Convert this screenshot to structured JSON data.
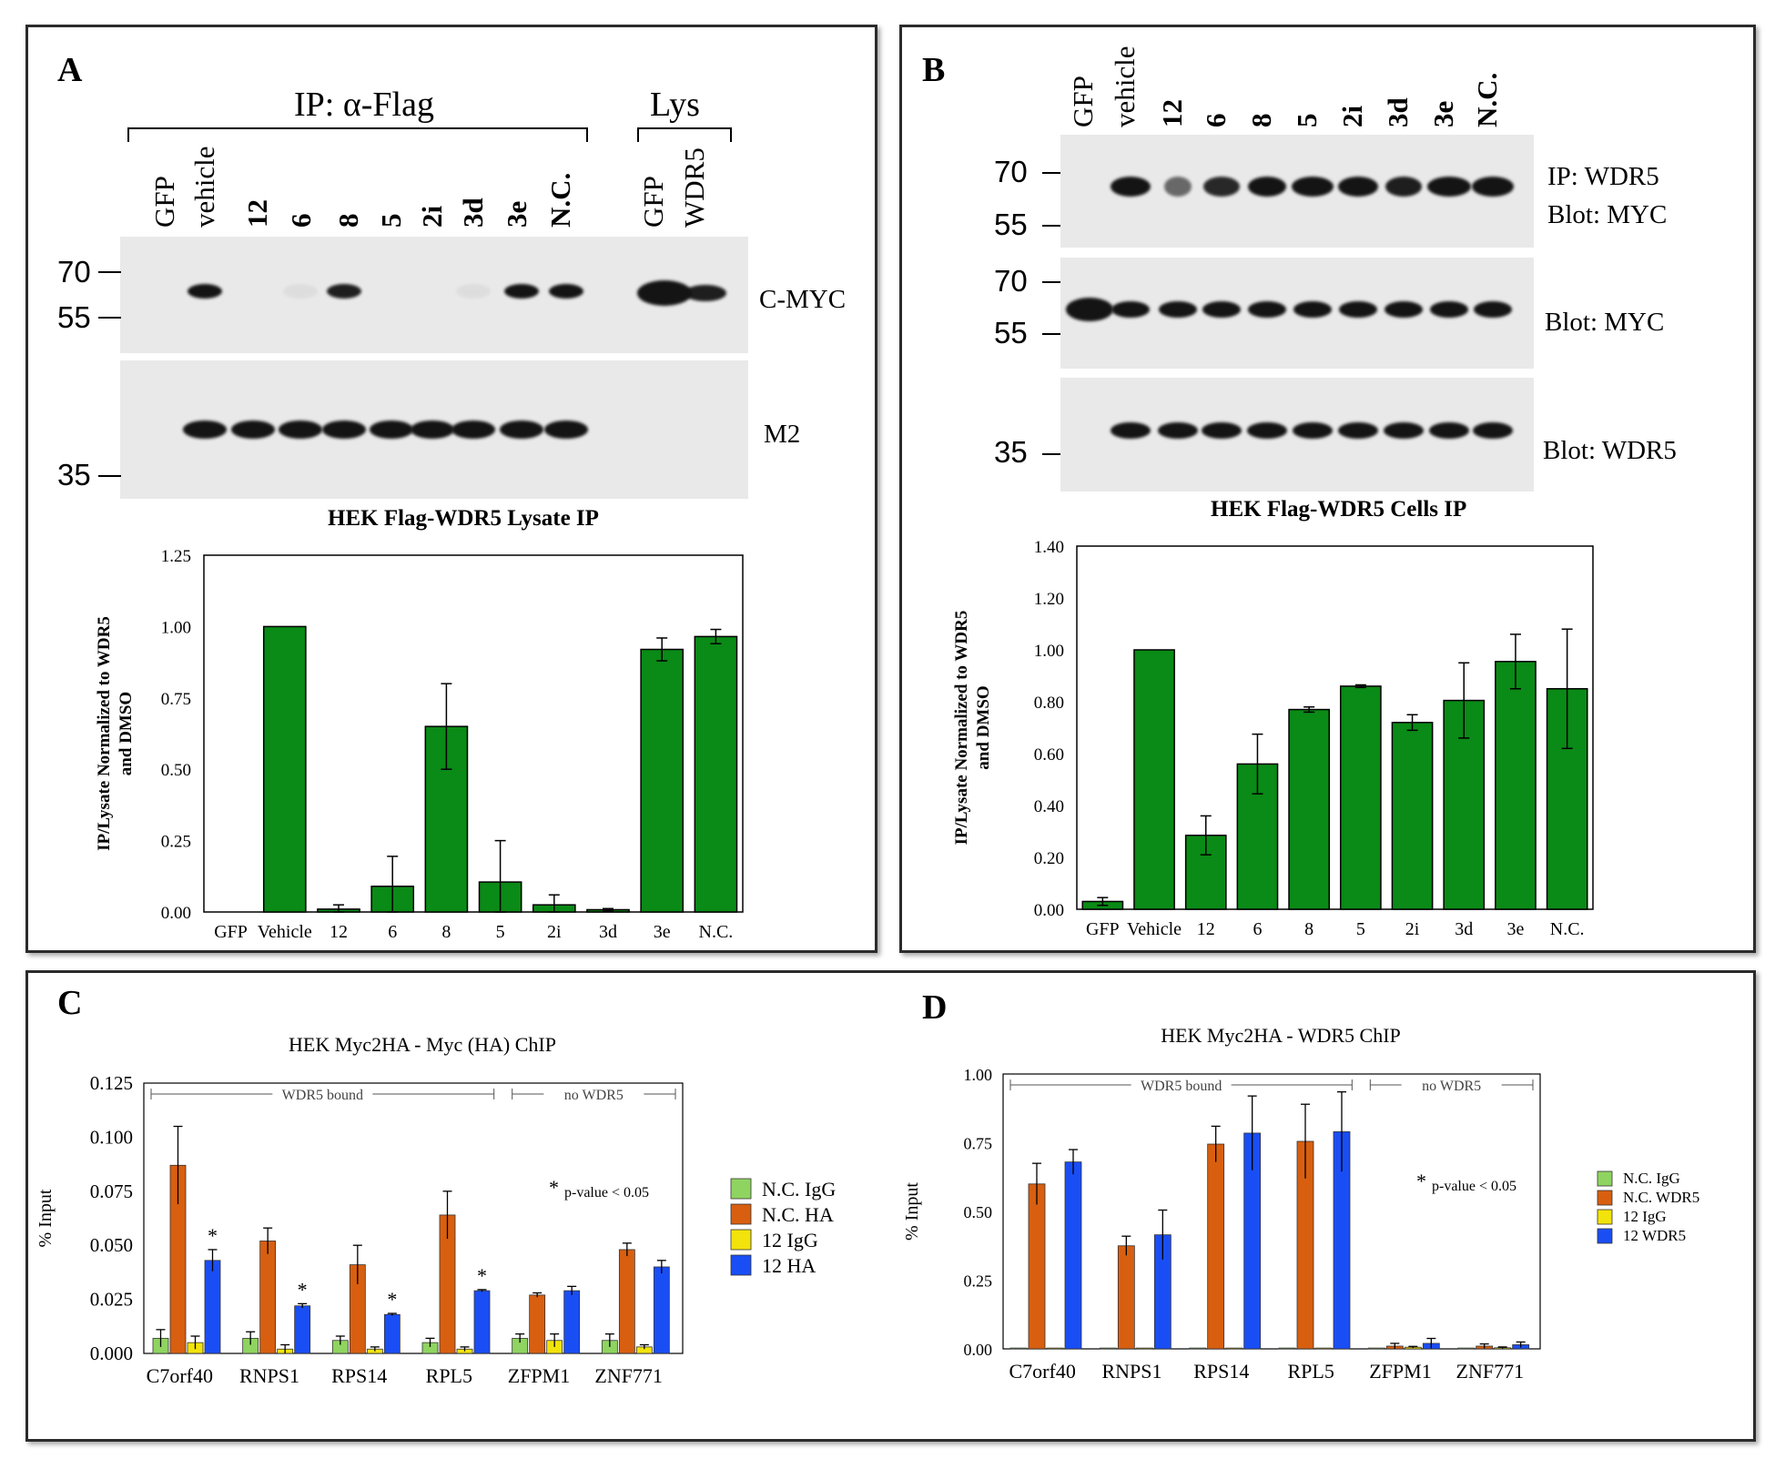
{
  "panels": {
    "A": {
      "letter": "A",
      "ip_header": "IP: α-Flag",
      "lys_header": "Lys",
      "lanes": [
        "GFP",
        "vehicle",
        "12",
        "6",
        "8",
        "5",
        "2i",
        "3d",
        "3e",
        "N.C.",
        "GFP",
        "WDR5"
      ],
      "mw_markers_top": [
        "70",
        "55"
      ],
      "mw_markers_bottom": [
        "35"
      ],
      "blot_labels": [
        "C-MYC",
        "M2"
      ],
      "blot_caption": "HEK Flag-WDR5 Lysate IP"
    },
    "B": {
      "letter": "B",
      "lanes": [
        "GFP",
        "vehicle",
        "12",
        "6",
        "8",
        "5",
        "2i",
        "3d",
        "3e",
        "N.C."
      ],
      "mw_markers_1": [
        "70",
        "55"
      ],
      "mw_markers_2": [
        "70",
        "55"
      ],
      "mw_markers_3": [
        "35"
      ],
      "blot_labels": [
        "IP: WDR5",
        "Blot: MYC",
        "Blot: MYC",
        "Blot: WDR5"
      ],
      "blot_caption": "HEK Flag-WDR5 Cells IP"
    },
    "C": {
      "letter": "C"
    },
    "D": {
      "letter": "D"
    }
  },
  "chart_data": [
    {
      "id": "A",
      "type": "bar",
      "title": "",
      "ylabel": "IP/Lysate Normalized to WDR5 and DMSO",
      "categories": [
        "GFP",
        "Vehicle",
        "12",
        "6",
        "8",
        "5",
        "2i",
        "3d",
        "3e",
        "N.C."
      ],
      "values": [
        0,
        1.0,
        0.01,
        0.09,
        0.65,
        0.105,
        0.025,
        0.008,
        0.92,
        0.965
      ],
      "errors": [
        0,
        0,
        0.015,
        0.105,
        0.15,
        0.145,
        0.035,
        0.004,
        0.04,
        0.025
      ],
      "ylim": [
        0,
        1.25
      ],
      "yticks": [
        "0.00",
        "0.25",
        "0.50",
        "0.75",
        "1.00",
        "1.25"
      ],
      "color": "#0a8a16"
    },
    {
      "id": "B",
      "type": "bar",
      "title": "",
      "ylabel": "IP/Lysate Normalized to WDR5 and DMSO",
      "categories": [
        "GFP",
        "Vehicle",
        "12",
        "6",
        "8",
        "5",
        "2i",
        "3d",
        "3e",
        "N.C."
      ],
      "values": [
        0.03,
        1.0,
        0.285,
        0.56,
        0.77,
        0.86,
        0.72,
        0.805,
        0.955,
        0.85
      ],
      "errors": [
        0.015,
        0,
        0.075,
        0.115,
        0.01,
        0.005,
        0.03,
        0.145,
        0.105,
        0.23
      ],
      "ylim": [
        0,
        1.4
      ],
      "yticks": [
        "0.00",
        "0.20",
        "0.40",
        "0.60",
        "0.80",
        "1.00",
        "1.20",
        "1.40"
      ],
      "color": "#0a8a16"
    },
    {
      "id": "C",
      "type": "bar",
      "title": "HEK Myc2HA - Myc (HA) ChIP",
      "ylabel": "% Input",
      "categories": [
        "C7orf40",
        "RNPS1",
        "RPS14",
        "RPL5",
        "ZFPM1",
        "ZNF771"
      ],
      "ylim": [
        0,
        0.125
      ],
      "yticks": [
        "0.000",
        "0.025",
        "0.050",
        "0.075",
        "0.100",
        "0.125"
      ],
      "bracket_bound": "WDR5 bound",
      "bracket_none": "no WDR5",
      "pvalue_note": "p-value < 0.05",
      "series": [
        {
          "name": "N.C. IgG",
          "color": "#8fd460",
          "values": [
            0.007,
            0.007,
            0.006,
            0.005,
            0.007,
            0.006
          ],
          "errors": [
            0.004,
            0.003,
            0.002,
            0.002,
            0.002,
            0.003
          ]
        },
        {
          "name": "N.C. HA",
          "color": "#d85f10",
          "values": [
            0.087,
            0.052,
            0.041,
            0.064,
            0.027,
            0.048
          ],
          "errors": [
            0.018,
            0.006,
            0.009,
            0.011,
            0.001,
            0.003
          ]
        },
        {
          "name": "12 IgG",
          "color": "#f2e30c",
          "values": [
            0.005,
            0.002,
            0.002,
            0.002,
            0.006,
            0.003
          ],
          "errors": [
            0.003,
            0.002,
            0.001,
            0.001,
            0.003,
            0.001
          ]
        },
        {
          "name": "12 HA",
          "color": "#1a4ef5",
          "values": [
            0.043,
            0.022,
            0.018,
            0.029,
            0.029,
            0.04
          ],
          "errors": [
            0.005,
            0.001,
            0.0005,
            0.0005,
            0.002,
            0.003
          ]
        }
      ],
      "significant": [
        true,
        true,
        true,
        true,
        false,
        false
      ]
    },
    {
      "id": "D",
      "type": "bar",
      "title": "HEK Myc2HA - WDR5 ChIP",
      "ylabel": "% Input",
      "categories": [
        "C7orf40",
        "RNPS1",
        "RPS14",
        "RPL5",
        "ZFPM1",
        "ZNF771"
      ],
      "ylim": [
        0,
        1.0
      ],
      "yticks": [
        "0.00",
        "0.25",
        "0.50",
        "0.75",
        "1.00"
      ],
      "bracket_bound": "WDR5 bound",
      "bracket_none": "no WDR5",
      "pvalue_note": "p-value < 0.05",
      "series": [
        {
          "name": "N.C. IgG",
          "color": "#8fd460",
          "values": [
            0.003,
            0.003,
            0.003,
            0.003,
            0.003,
            0.003
          ],
          "errors": [
            0,
            0,
            0,
            0,
            0,
            0
          ]
        },
        {
          "name": "N.C. WDR5",
          "color": "#d85f10",
          "values": [
            0.6,
            0.375,
            0.745,
            0.755,
            0.01,
            0.01
          ],
          "errors": [
            0.075,
            0.035,
            0.065,
            0.135,
            0.01,
            0.008
          ]
        },
        {
          "name": "12 IgG",
          "color": "#f2e30c",
          "values": [
            0.003,
            0.003,
            0.003,
            0.003,
            0.006,
            0.004
          ],
          "errors": [
            0,
            0,
            0,
            0,
            0.003,
            0.003
          ]
        },
        {
          "name": "12 WDR5",
          "color": "#1a4ef5",
          "values": [
            0.68,
            0.415,
            0.785,
            0.79,
            0.02,
            0.015
          ],
          "errors": [
            0.045,
            0.09,
            0.135,
            0.145,
            0.018,
            0.01
          ]
        }
      ]
    }
  ]
}
